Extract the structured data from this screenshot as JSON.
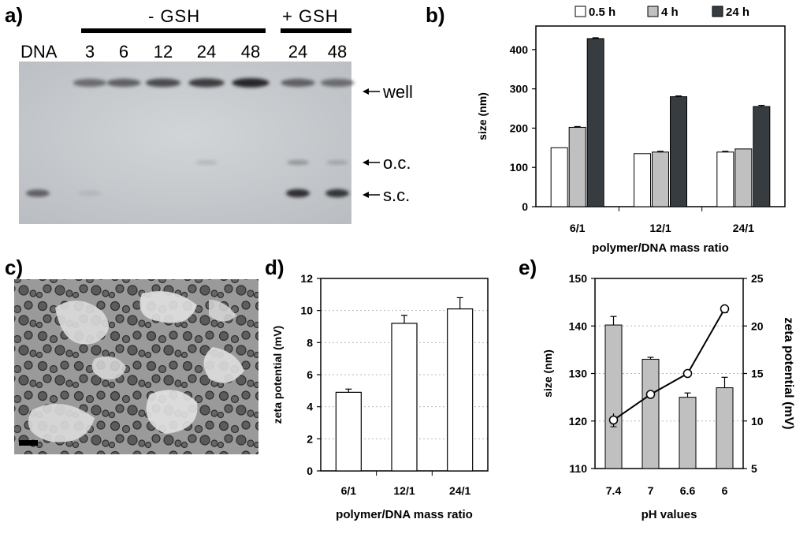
{
  "panels": {
    "a": {
      "label": "a)",
      "dna_label": "DNA",
      "minus_gsh": {
        "label": "- GSH",
        "times": [
          "3",
          "6",
          "12",
          "24",
          "48"
        ]
      },
      "plus_gsh": {
        "label": "+ GSH",
        "times": [
          "24",
          "48"
        ]
      },
      "markers": [
        "well",
        "o.c.",
        "s.c."
      ],
      "band_intensity": {
        "well": [
          0,
          0.55,
          0.6,
          0.7,
          0.8,
          0.95,
          0.6,
          0.55
        ],
        "oc": [
          0,
          0,
          0,
          0,
          0.15,
          0,
          0.35,
          0.25
        ],
        "sc": [
          0.6,
          0.1,
          0,
          0,
          0,
          0,
          0.9,
          0.85
        ]
      }
    },
    "b": {
      "label": "b)"
    },
    "c": {
      "label": "c)"
    },
    "d": {
      "label": "d)"
    },
    "e": {
      "label": "e)"
    }
  },
  "chart_data": [
    {
      "panel": "b",
      "type": "bar",
      "categories": [
        "6/1",
        "12/1",
        "24/1"
      ],
      "series": [
        {
          "name": "0.5 h",
          "values": [
            150,
            135,
            139
          ],
          "errors": [
            0,
            0,
            2
          ],
          "color": "#ffffff"
        },
        {
          "name": "4 h",
          "values": [
            202,
            139,
            147
          ],
          "errors": [
            2,
            2,
            0
          ],
          "color": "#c0c0c0"
        },
        {
          "name": "24 h",
          "values": [
            428,
            280,
            255
          ],
          "errors": [
            2,
            2,
            3
          ],
          "color": "#373c41"
        }
      ],
      "xlabel": "polymer/DNA mass ratio",
      "ylabel": "size (nm)",
      "ylim": [
        0,
        460
      ],
      "yticks": [
        0,
        100,
        200,
        300,
        400
      ],
      "legend_position": "top"
    },
    {
      "panel": "d",
      "type": "bar",
      "categories": [
        "6/1",
        "12/1",
        "24/1"
      ],
      "values": [
        4.9,
        9.2,
        10.1
      ],
      "errors": [
        0.2,
        0.5,
        0.7
      ],
      "xlabel": "polymer/DNA mass ratio",
      "ylabel": "zeta potential (mV)",
      "ylim": [
        0,
        12
      ],
      "yticks": [
        0,
        2,
        4,
        6,
        8,
        10,
        12
      ],
      "grid": true
    },
    {
      "panel": "e",
      "type": "bar+line",
      "categories": [
        "7.4",
        "7",
        "6.6",
        "6"
      ],
      "bar_values": [
        140.2,
        133.0,
        125.0,
        127.0
      ],
      "bar_errors": [
        1.8,
        0.4,
        0.9,
        2.2
      ],
      "line_values": [
        10.1,
        12.8,
        15.0,
        21.8
      ],
      "line_errors": [
        0.7,
        0,
        0,
        0.4
      ],
      "xlabel": "pH values",
      "ylabel_left": "size (nm)",
      "ylabel_right": "zeta potential (mV)",
      "ylim_left": [
        110,
        150
      ],
      "yticks_left": [
        110,
        120,
        130,
        140,
        150
      ],
      "ylim_right": [
        5,
        25
      ],
      "yticks_right": [
        5,
        10,
        15,
        20,
        25
      ],
      "grid": true
    }
  ],
  "colors": {
    "bar_gray": "#c0c0c0",
    "bar_dark": "#373c41",
    "gel_bg": "#c9cccf"
  }
}
